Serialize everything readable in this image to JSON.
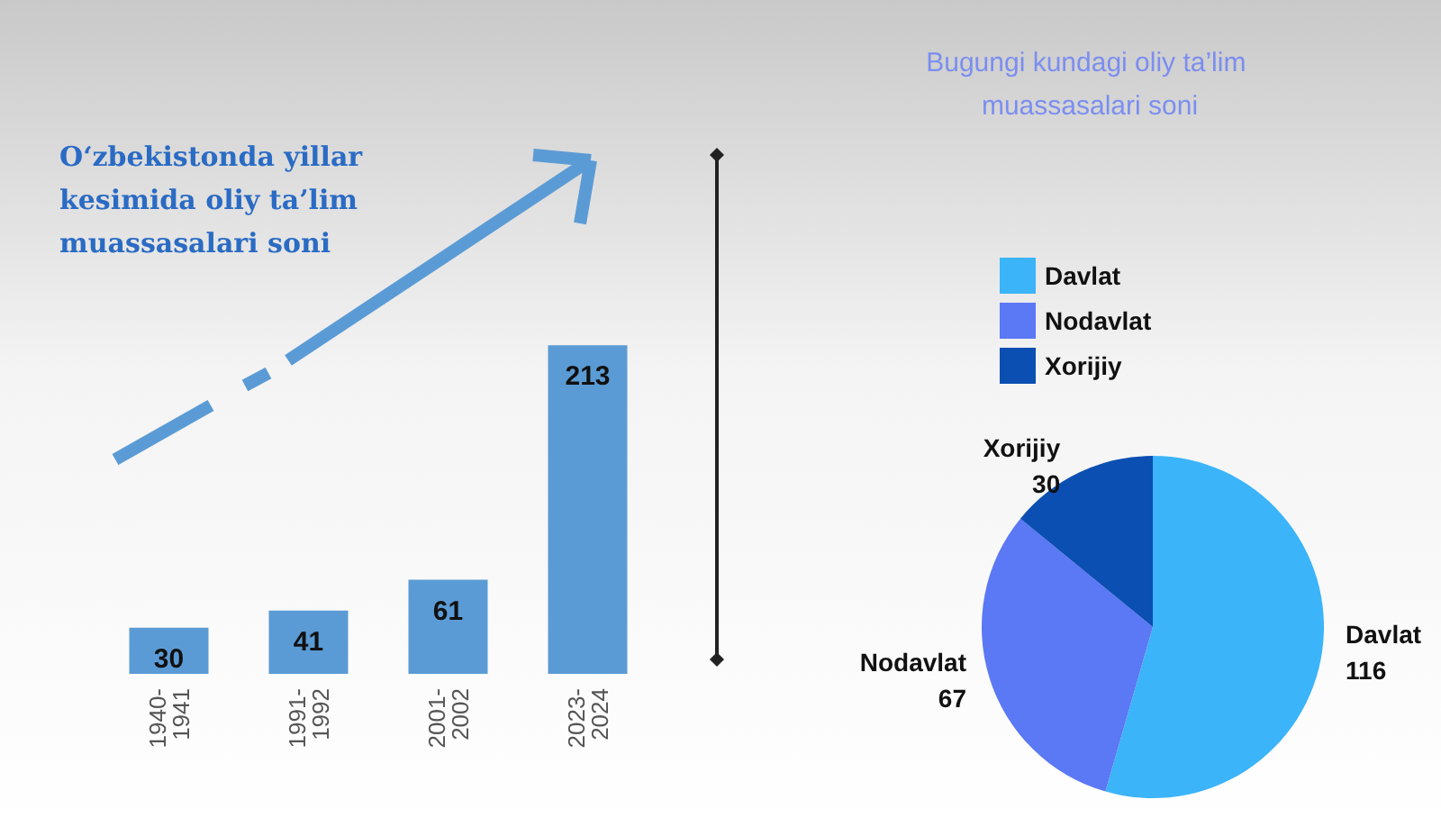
{
  "chart_data": [
    {
      "type": "bar",
      "title": "O‘zbekistonda yillar kesimida oliy ta’lim muassasalari soni",
      "categories": [
        "1940-1941",
        "1991-1992",
        "2001-2002",
        "2023-2024"
      ],
      "values": [
        30,
        41,
        61,
        213
      ],
      "color": "#5b9bd5",
      "data_labels": true
    },
    {
      "type": "pie",
      "title": "Bugungi kundagi oliy ta’lim muassasalari soni",
      "categories": [
        "Davlat",
        "Nodavlat",
        "Xorijiy"
      ],
      "values": [
        116,
        67,
        30
      ],
      "colors": [
        "#3bb4fa",
        "#5b78f5",
        "#0b4fb3"
      ],
      "legend": "top",
      "data_labels": true
    }
  ]
}
